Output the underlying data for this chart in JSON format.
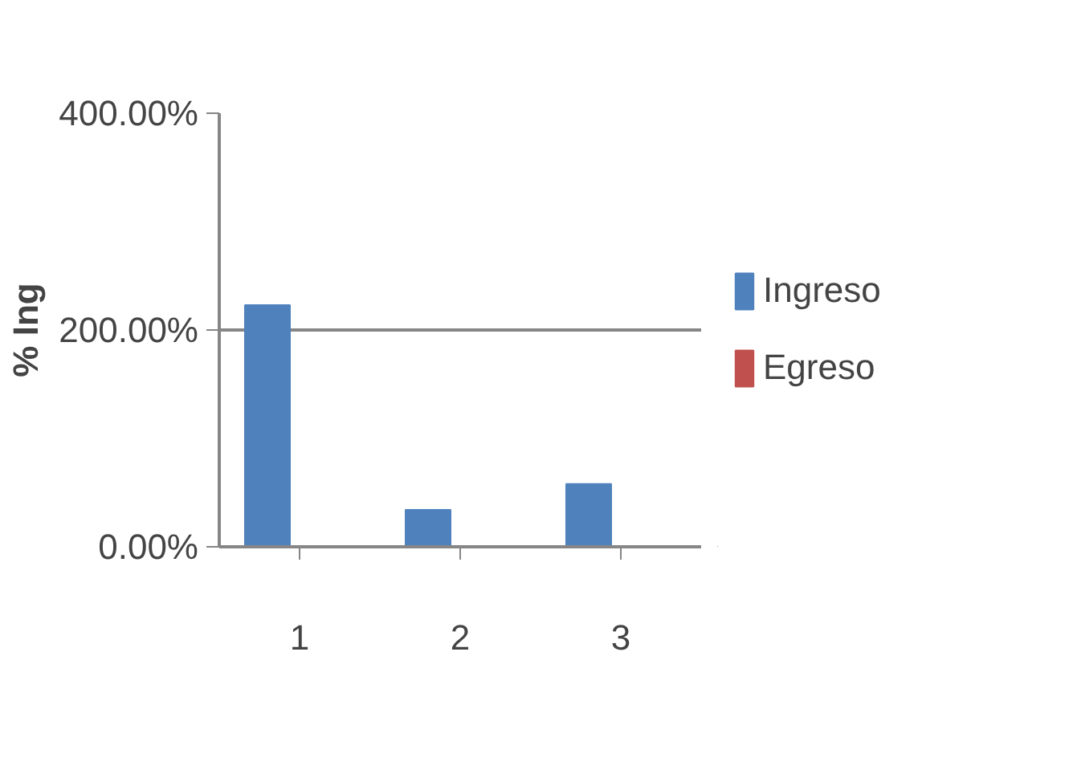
{
  "chart_data": {
    "type": "bar",
    "ylabel": "% Ing",
    "categories": [
      "1",
      "2",
      "3"
    ],
    "series": [
      {
        "name": "Ingreso",
        "color": "#4f81bd",
        "values": [
          223,
          34,
          58
        ]
      },
      {
        "name": "Egreso",
        "color": "#c0504d",
        "values": [
          0,
          0,
          0
        ]
      }
    ],
    "ylim": [
      0,
      400
    ],
    "yticks": [
      {
        "value": 0,
        "label": "0.00%"
      },
      {
        "value": 200,
        "label": "200.00%"
      },
      {
        "value": 400,
        "label": "400.00%"
      }
    ],
    "grid": "y",
    "legend": "right"
  }
}
